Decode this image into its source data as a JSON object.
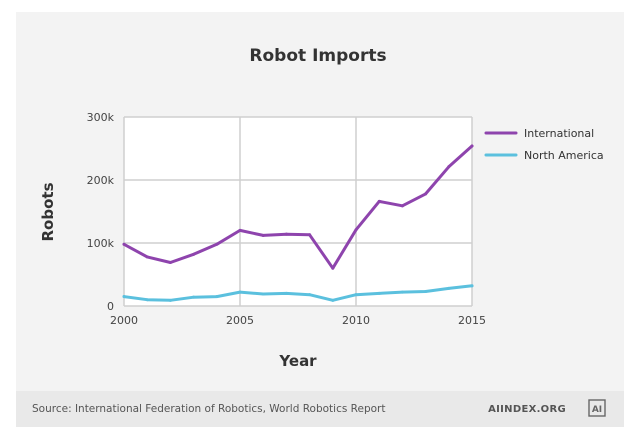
{
  "chart_data": {
    "type": "line",
    "title": "Robot Imports",
    "xlabel": "Year",
    "ylabel": "Robots",
    "xlim": [
      2000,
      2015
    ],
    "ylim": [
      0,
      300000
    ],
    "x_ticks": [
      "2000",
      "2005",
      "2010",
      "2015"
    ],
    "y_ticks": [
      "0",
      "100k",
      "200k",
      "300k"
    ],
    "grid": true,
    "legend_position": "right",
    "x": [
      2000,
      2001,
      2002,
      2003,
      2004,
      2005,
      2006,
      2007,
      2008,
      2009,
      2010,
      2011,
      2012,
      2013,
      2014,
      2015
    ],
    "series": [
      {
        "name": "International",
        "color": "#8e44ad",
        "values": [
          98000,
          78000,
          69000,
          82000,
          98000,
          120000,
          112000,
          114000,
          113000,
          60000,
          121000,
          166000,
          159000,
          178000,
          221000,
          254000
        ]
      },
      {
        "name": "North America",
        "color": "#5bc0de",
        "values": [
          15000,
          10000,
          9000,
          14000,
          15000,
          22000,
          19000,
          20000,
          18000,
          9000,
          18000,
          20000,
          22000,
          23000,
          28000,
          32000
        ]
      }
    ]
  },
  "footer": {
    "source": "Source: International Federation of Robotics, World Robotics Report",
    "brand": "AIINDEX.ORG",
    "logo_text": "AI"
  }
}
